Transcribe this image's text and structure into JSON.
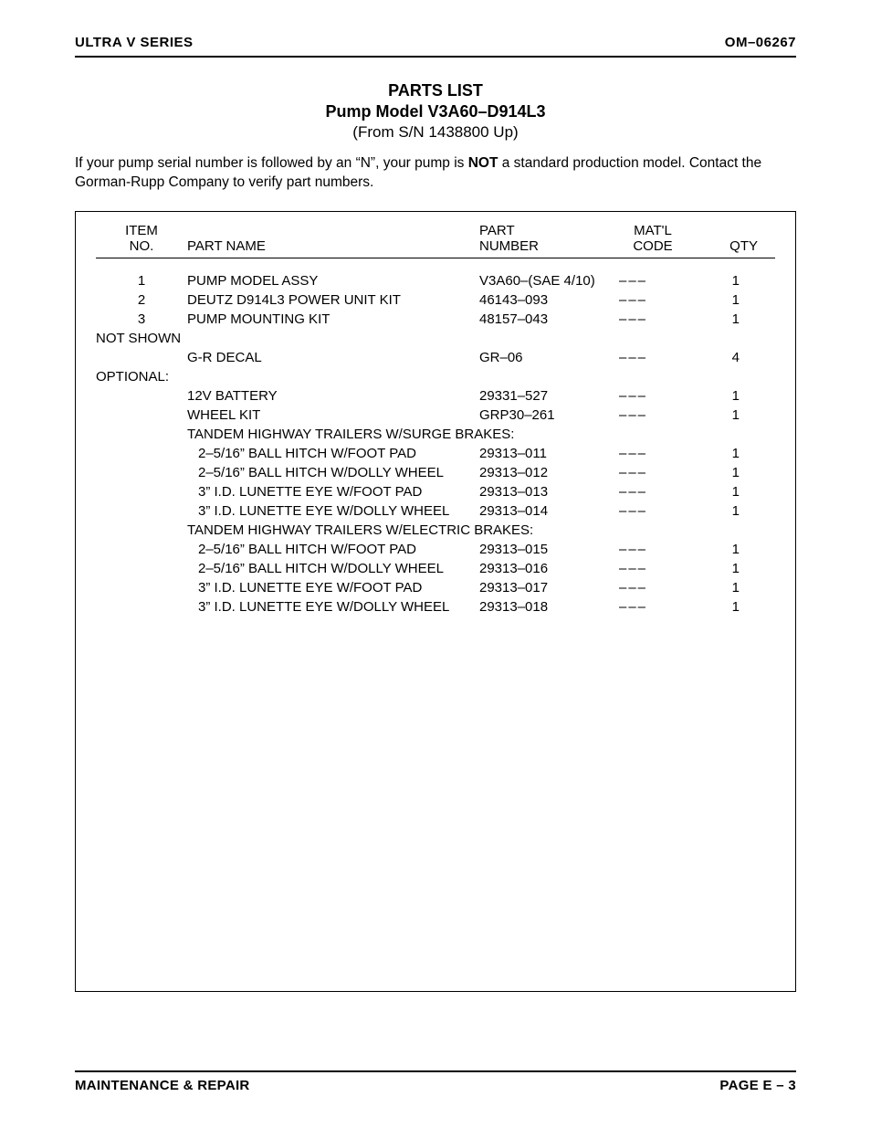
{
  "header": {
    "left": "ULTRA V SERIES",
    "right": "OM–06267"
  },
  "title": {
    "line1": "PARTS LIST",
    "line2": "Pump Model V3A60–D914L3",
    "line3": "(From S/N 1438800 Up)"
  },
  "note": {
    "part1": "If your pump serial number is followed by an “N”, your pump is ",
    "bold": "NOT",
    "part2": " a standard production model. Contact the Gorman-Rupp Company to verify part numbers."
  },
  "table": {
    "headers": {
      "item1": "ITEM",
      "item2": "NO.",
      "name": "PART NAME",
      "part1": "PART",
      "part2": "NUMBER",
      "matl1": "MAT'L",
      "matl2": "CODE",
      "qty": "QTY"
    },
    "rows": [
      {
        "item": "1",
        "name": "PUMP MODEL ASSY",
        "part": "V3A60–(SAE 4/10)",
        "matl": "–––",
        "qty": "1"
      },
      {
        "item": "2",
        "name": "DEUTZ D914L3 POWER UNIT KIT",
        "part": "46143–093",
        "matl": "–––",
        "qty": "1"
      },
      {
        "item": "3",
        "name": "PUMP MOUNTING KIT",
        "part": "48157–043",
        "matl": "–––",
        "qty": "1"
      }
    ],
    "not_shown_label": "NOT SHOWN",
    "not_shown_rows": [
      {
        "item": "",
        "name": "G-R DECAL",
        "part": "GR–06",
        "matl": "–––",
        "qty": "4"
      }
    ],
    "optional_label": "OPTIONAL:",
    "optional_rows1": [
      {
        "item": "",
        "name": "12V BATTERY",
        "part": "29331–527",
        "matl": "–––",
        "qty": "1"
      },
      {
        "item": "",
        "name": "WHEEL KIT",
        "part": "GRP30–261",
        "matl": "–––",
        "qty": "1"
      }
    ],
    "sub1_label": "TANDEM HIGHWAY TRAILERS W/SURGE BRAKES:",
    "sub1_rows": [
      {
        "item": "",
        "name": "2–5/16” BALL HITCH W/FOOT PAD",
        "part": "29313–011",
        "matl": "–––",
        "qty": "1"
      },
      {
        "item": "",
        "name": "2–5/16” BALL HITCH W/DOLLY WHEEL",
        "part": "29313–012",
        "matl": "–––",
        "qty": "1"
      },
      {
        "item": "",
        "name": "3” I.D. LUNETTE EYE W/FOOT PAD",
        "part": "29313–013",
        "matl": "–––",
        "qty": "1"
      },
      {
        "item": "",
        "name": "3” I.D. LUNETTE EYE W/DOLLY WHEEL",
        "part": "29313–014",
        "matl": "–––",
        "qty": "1"
      }
    ],
    "sub2_label": "TANDEM HIGHWAY TRAILERS W/ELECTRIC BRAKES:",
    "sub2_rows": [
      {
        "item": "",
        "name": "2–5/16” BALL HITCH W/FOOT PAD",
        "part": "29313–015",
        "matl": "–––",
        "qty": "1"
      },
      {
        "item": "",
        "name": "2–5/16” BALL HITCH W/DOLLY WHEEL",
        "part": "29313–016",
        "matl": "–––",
        "qty": "1"
      },
      {
        "item": "",
        "name": "3” I.D. LUNETTE EYE W/FOOT PAD",
        "part": "29313–017",
        "matl": "–––",
        "qty": "1"
      },
      {
        "item": "",
        "name": "3” I.D. LUNETTE EYE W/DOLLY WHEEL",
        "part": "29313–018",
        "matl": "–––",
        "qty": "1"
      }
    ]
  },
  "footer": {
    "left": "MAINTENANCE & REPAIR",
    "right": "PAGE E – 3"
  }
}
